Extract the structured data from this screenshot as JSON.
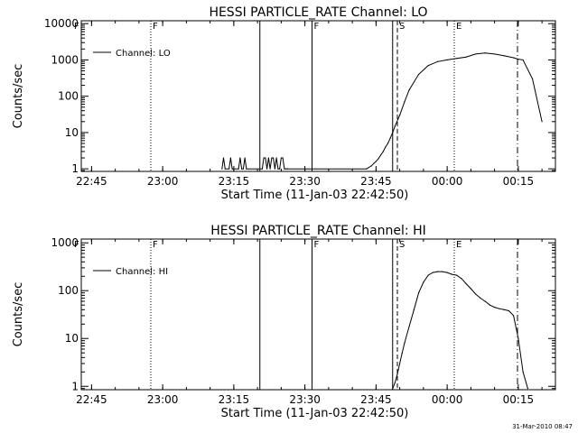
{
  "footer": {
    "timestamp": "31-Mar-2010 08:47"
  },
  "chart_data": [
    {
      "type": "line",
      "title": "HESSI PARTICLE_RATE Channel: LO",
      "xlabel": "Start Time (11-Jan-03 22:42:50)",
      "ylabel": "Counts/sec",
      "yscale": "log",
      "xlim": [
        "22:42:50",
        "00:22:50"
      ],
      "ylim": [
        0.85,
        12000
      ],
      "grid": false,
      "legend_position": "top-left",
      "x_ticks": [
        "22:45",
        "23:00",
        "23:15",
        "23:30",
        "23:45",
        "00:00",
        "00:15"
      ],
      "y_ticks": [
        "1",
        "10",
        "100",
        "1000",
        "10000"
      ],
      "series": [
        {
          "name": "Channel: LO",
          "x": [
            "23:12:30",
            "23:12:50",
            "23:13:10",
            "23:14:00",
            "23:14:20",
            "23:14:40",
            "23:15:00",
            "23:16:00",
            "23:16:20",
            "23:16:40",
            "23:17:00",
            "23:17:20",
            "23:17:40",
            "23:21:00",
            "23:21:20",
            "23:21:40",
            "23:22:00",
            "23:22:20",
            "23:22:40",
            "23:23:00",
            "23:23:20",
            "23:23:40",
            "23:24:00",
            "23:24:20",
            "23:24:40",
            "23:25:00",
            "23:25:20",
            "23:25:40",
            "23:26:00",
            "23:26:20",
            "23:43:00",
            "23:43:30",
            "23:44:00",
            "23:44:30",
            "23:45:00",
            "23:45:30",
            "23:46:00",
            "23:46:30",
            "23:47:00",
            "23:47:30",
            "23:48:00",
            "23:48:30",
            "23:49:00",
            "23:50:00",
            "23:51:00",
            "23:52:00",
            "23:54:00",
            "23:56:00",
            "23:58:00",
            "00:00:00",
            "00:02:00",
            "00:04:00",
            "00:06:00",
            "00:08:00",
            "00:10:00",
            "00:12:00",
            "00:14:00",
            "00:15:00",
            "00:16:00",
            "00:18:00",
            "00:20:00"
          ],
          "y": [
            1,
            2,
            1,
            1,
            2,
            1,
            1,
            1,
            2,
            1,
            1,
            2,
            1,
            1,
            2,
            2,
            1,
            2,
            1,
            2,
            2,
            1,
            2,
            1,
            1,
            2,
            2,
            1,
            1,
            1,
            1,
            1.1,
            1.2,
            1.4,
            1.6,
            1.9,
            2.4,
            3,
            4,
            5,
            7,
            10,
            15,
            30,
            70,
            150,
            400,
            700,
            900,
            1000,
            1100,
            1200,
            1450,
            1550,
            1450,
            1300,
            1150,
            1050,
            1000,
            300,
            20
          ]
        }
      ],
      "markers": [
        {
          "type": "dotted",
          "x": "22:57:30",
          "label": "F"
        },
        {
          "type": "solid",
          "x": "23:20:30",
          "label": ""
        },
        {
          "type": "solid",
          "x": "23:31:30",
          "label": "F"
        },
        {
          "type": "solid",
          "x": "23:48:30",
          "label": ""
        },
        {
          "type": "dashed",
          "x": "23:49:30",
          "label": "S"
        },
        {
          "type": "dotted",
          "x": "00:01:30",
          "label": "E"
        },
        {
          "type": "dashdot",
          "x": "00:14:50",
          "label": ""
        }
      ],
      "corner_label": "F"
    },
    {
      "type": "line",
      "title": "HESSI PARTICLE_RATE Channel: HI",
      "xlabel": "Start Time (11-Jan-03 22:42:50)",
      "ylabel": "Counts/sec",
      "yscale": "log",
      "xlim": [
        "22:42:50",
        "00:22:50"
      ],
      "ylim": [
        0.85,
        1200
      ],
      "grid": false,
      "legend_position": "top-left",
      "x_ticks": [
        "22:45",
        "23:00",
        "23:15",
        "23:30",
        "23:45",
        "00:00",
        "00:15"
      ],
      "y_ticks": [
        "1",
        "10",
        "100",
        "1000"
      ],
      "series": [
        {
          "name": "Channel: HI",
          "x": [
            "23:48:30",
            "23:49:00",
            "23:49:30",
            "23:50:00",
            "23:50:30",
            "23:51:00",
            "23:52:00",
            "23:53:00",
            "23:54:00",
            "23:55:00",
            "23:56:00",
            "23:57:00",
            "23:58:00",
            "23:59:00",
            "00:00:00",
            "00:01:00",
            "00:02:00",
            "00:03:00",
            "00:04:00",
            "00:05:00",
            "00:06:00",
            "00:07:00",
            "00:08:00",
            "00:09:00",
            "00:10:00",
            "00:11:00",
            "00:12:00",
            "00:13:00",
            "00:14:00",
            "00:15:00",
            "00:16:00",
            "00:17:00"
          ],
          "y": [
            0.9,
            1.2,
            1.8,
            3,
            5,
            8,
            18,
            40,
            90,
            150,
            210,
            240,
            250,
            250,
            240,
            220,
            210,
            180,
            140,
            110,
            85,
            70,
            60,
            50,
            45,
            42,
            40,
            38,
            30,
            10,
            2,
            0.9
          ]
        }
      ],
      "markers": [
        {
          "type": "dotted",
          "x": "22:57:30",
          "label": "F"
        },
        {
          "type": "solid",
          "x": "23:20:30",
          "label": ""
        },
        {
          "type": "solid",
          "x": "23:31:30",
          "label": "F"
        },
        {
          "type": "solid",
          "x": "23:48:30",
          "label": ""
        },
        {
          "type": "dashed",
          "x": "23:49:30",
          "label": "S"
        },
        {
          "type": "dotted",
          "x": "00:01:30",
          "label": "E"
        },
        {
          "type": "dashdot",
          "x": "00:14:50",
          "label": ""
        }
      ],
      "corner_label": "F"
    }
  ]
}
